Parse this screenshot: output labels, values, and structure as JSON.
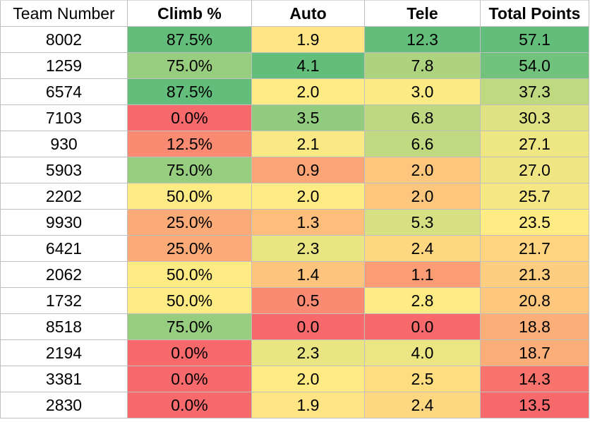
{
  "headers": {
    "team": "Team Number",
    "climb": "Climb %",
    "auto": "Auto",
    "tele": "Tele",
    "total": "Total Points"
  },
  "rows": [
    {
      "team": "8002",
      "climb": "87.5%",
      "auto": "1.9",
      "tele": "12.3",
      "total": "57.1"
    },
    {
      "team": "1259",
      "climb": "75.0%",
      "auto": "4.1",
      "tele": "7.8",
      "total": "54.0"
    },
    {
      "team": "6574",
      "climb": "87.5%",
      "auto": "2.0",
      "tele": "3.0",
      "total": "37.3"
    },
    {
      "team": "7103",
      "climb": "0.0%",
      "auto": "3.5",
      "tele": "6.8",
      "total": "30.3"
    },
    {
      "team": "930",
      "climb": "12.5%",
      "auto": "2.1",
      "tele": "6.6",
      "total": "27.1"
    },
    {
      "team": "5903",
      "climb": "75.0%",
      "auto": "0.9",
      "tele": "2.0",
      "total": "27.0"
    },
    {
      "team": "2202",
      "climb": "50.0%",
      "auto": "2.0",
      "tele": "2.0",
      "total": "25.7"
    },
    {
      "team": "9930",
      "climb": "25.0%",
      "auto": "1.3",
      "tele": "5.3",
      "total": "23.5"
    },
    {
      "team": "6421",
      "climb": "25.0%",
      "auto": "2.3",
      "tele": "2.4",
      "total": "21.7"
    },
    {
      "team": "2062",
      "climb": "50.0%",
      "auto": "1.4",
      "tele": "1.1",
      "total": "21.3"
    },
    {
      "team": "1732",
      "climb": "50.0%",
      "auto": "0.5",
      "tele": "2.8",
      "total": "20.8"
    },
    {
      "team": "8518",
      "climb": "75.0%",
      "auto": "0.0",
      "tele": "0.0",
      "total": "18.8"
    },
    {
      "team": "2194",
      "climb": "0.0%",
      "auto": "2.3",
      "tele": "4.0",
      "total": "18.7"
    },
    {
      "team": "3381",
      "climb": "0.0%",
      "auto": "2.0",
      "tele": "2.5",
      "total": "14.3"
    },
    {
      "team": "2830",
      "climb": "0.0%",
      "auto": "1.9",
      "tele": "2.4",
      "total": "13.5"
    }
  ],
  "color_scale": {
    "low": "#f8696b",
    "mid": "#ffeb84",
    "high": "#63be7b"
  }
}
